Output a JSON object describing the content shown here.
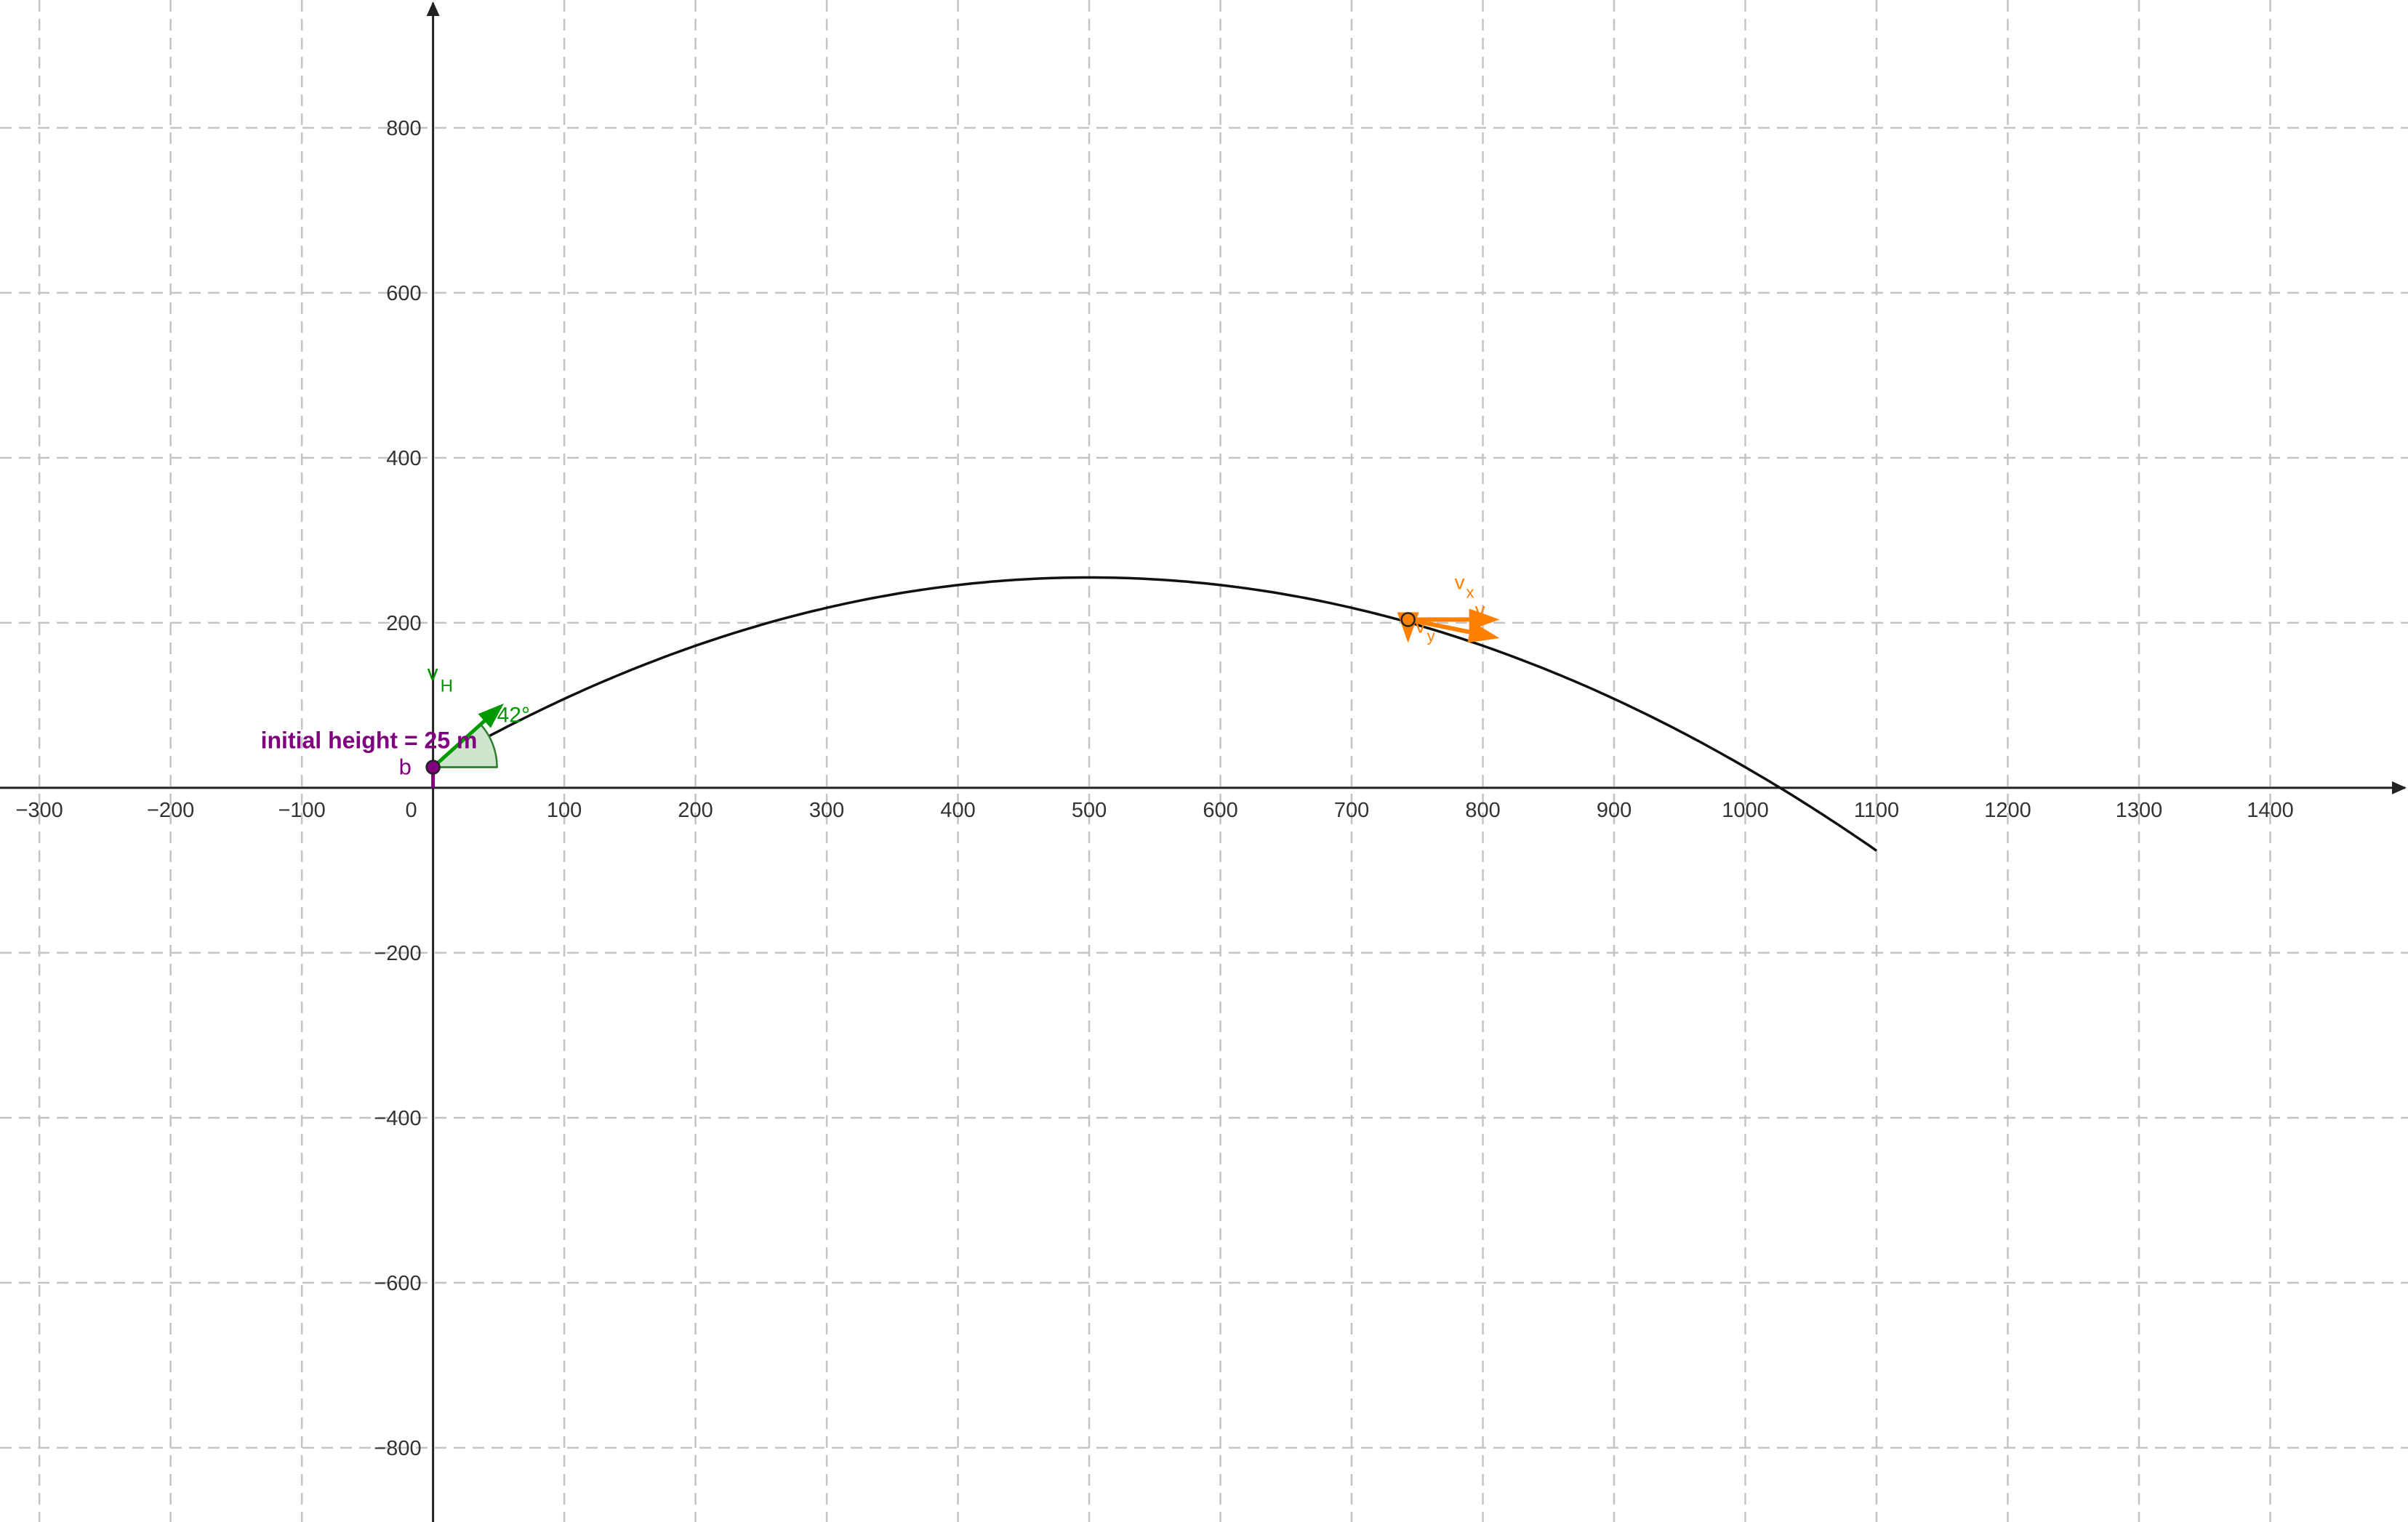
{
  "axes": {
    "x_min": -330,
    "x_max": 1505,
    "y_min": -890,
    "y_max": 955,
    "x_ticks": [
      -300,
      -200,
      -100,
      0,
      100,
      200,
      300,
      400,
      500,
      600,
      700,
      800,
      900,
      1000,
      1100,
      1200,
      1300,
      1400
    ],
    "x_tick_labels": [
      "−300",
      "−200",
      "−100",
      "0",
      "100",
      "200",
      "300",
      "400",
      "500",
      "600",
      "700",
      "800",
      "900",
      "1000",
      "1100",
      "1200",
      "1300",
      "1400"
    ],
    "y_ticks": [
      -800,
      -600,
      -400,
      -200,
      200,
      400,
      600,
      800
    ],
    "y_tick_labels": [
      "−800",
      "−600",
      "−400",
      "−200",
      "200",
      "400",
      "600",
      "800"
    ],
    "grid": true,
    "grid_style": "dashed"
  },
  "trajectory": {
    "x_start": 0,
    "x_end": 1100,
    "vertex": [
      500,
      255
    ],
    "y_at_zero": 25,
    "color": "#000000"
  },
  "launch": {
    "point_label": "b",
    "height_label": "initial height = 25 m",
    "height_color": "#800080",
    "angle_label": "42°",
    "angle_deg": 42,
    "velocity_label": "v",
    "velocity_subscript": "H",
    "launch_color": "#009900",
    "angle_fill": "#cde6cd"
  },
  "projectile": {
    "x": 743,
    "y": 204,
    "color": "#ff7f00",
    "vector_labels": [
      {
        "main": "v",
        "sub": "x"
      },
      {
        "main": "v",
        "sub": "y"
      },
      {
        "main": "v",
        "sub": ""
      }
    ]
  }
}
